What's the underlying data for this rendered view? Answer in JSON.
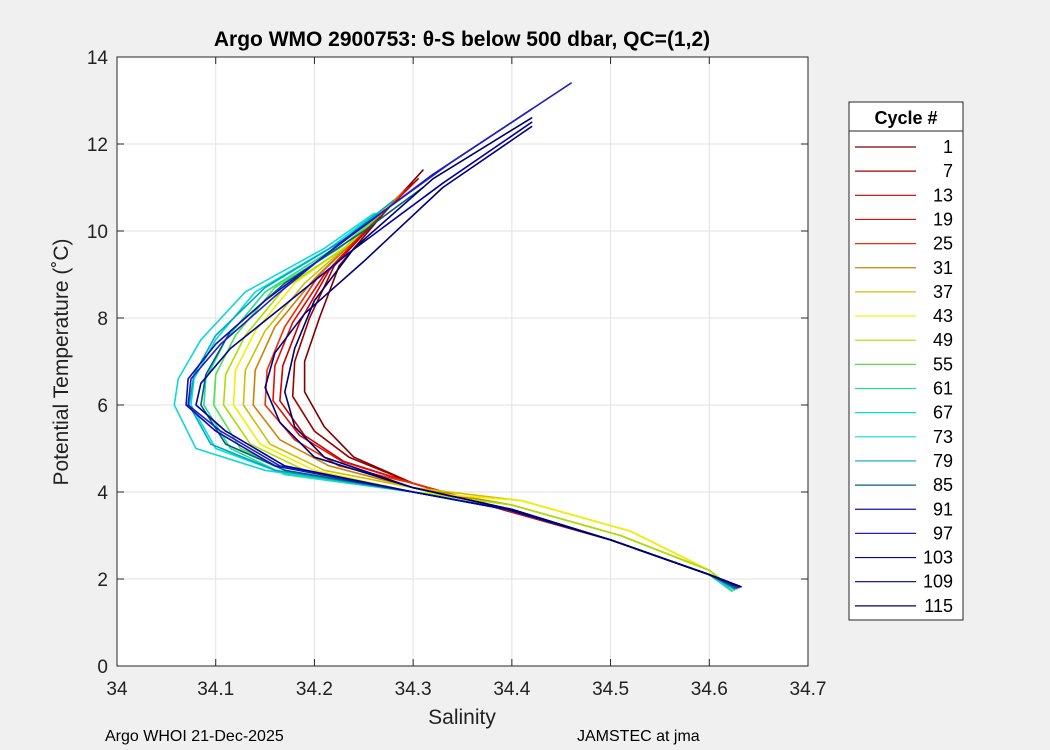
{
  "chart_data": {
    "type": "line",
    "title": "Argo WMO 2900753: θ-S below 500 dbar,  QC=(1,2)",
    "xlabel": "Salinity",
    "ylabel": "Potential Temperature (˚C)",
    "xlim": [
      34.0,
      34.7
    ],
    "ylim": [
      0,
      14
    ],
    "xticks": [
      34,
      34.1,
      34.2,
      34.3,
      34.4,
      34.5,
      34.6,
      34.7
    ],
    "xtick_labels": [
      "34",
      "34.1",
      "34.2",
      "34.3",
      "34.4",
      "34.5",
      "34.6",
      "34.7"
    ],
    "yticks": [
      0,
      2,
      4,
      6,
      8,
      10,
      12,
      14
    ],
    "ytick_labels": [
      "0",
      "2",
      "4",
      "6",
      "8",
      "10",
      "12",
      "14"
    ],
    "grid": true,
    "legend_title": "Cycle #",
    "legend_position": "right-outside",
    "series": [
      {
        "name": "1",
        "color": "#800000",
        "s": [
          34.31,
          34.27,
          34.225,
          34.205,
          34.19,
          34.19,
          34.21,
          34.24,
          34.3,
          34.39,
          34.5,
          34.6,
          34.625
        ],
        "t": [
          11.4,
          10.4,
          9.2,
          8.0,
          7.0,
          6.3,
          5.5,
          4.8,
          4.2,
          3.6,
          2.9,
          2.1,
          1.75
        ]
      },
      {
        "name": "7",
        "color": "#9c0000",
        "s": [
          34.305,
          34.265,
          34.22,
          34.195,
          34.18,
          34.178,
          34.2,
          34.235,
          34.3,
          34.39,
          34.5,
          34.6,
          34.624
        ],
        "t": [
          11.2,
          10.3,
          9.2,
          8.0,
          7.0,
          6.2,
          5.4,
          4.8,
          4.2,
          3.6,
          2.9,
          2.1,
          1.75
        ]
      },
      {
        "name": "13",
        "color": "#c80000",
        "s": [
          34.3,
          34.26,
          34.215,
          34.185,
          34.168,
          34.165,
          34.19,
          34.23,
          34.3,
          34.39,
          34.5,
          34.6,
          34.623
        ],
        "t": [
          11.1,
          10.2,
          9.1,
          7.9,
          6.9,
          6.1,
          5.3,
          4.7,
          4.2,
          3.6,
          2.9,
          2.1,
          1.74
        ]
      },
      {
        "name": "19",
        "color": "#e01000",
        "s": [
          34.295,
          34.255,
          34.21,
          34.178,
          34.16,
          34.158,
          34.185,
          34.228,
          34.3,
          34.392,
          34.5,
          34.6,
          34.622
        ],
        "t": [
          11.0,
          10.1,
          9.0,
          7.9,
          6.9,
          6.1,
          5.3,
          4.7,
          4.2,
          3.6,
          2.9,
          2.1,
          1.74
        ]
      },
      {
        "name": "25",
        "color": "#f03000",
        "s": [
          34.29,
          34.25,
          34.205,
          34.17,
          34.152,
          34.15,
          34.18,
          34.225,
          34.3,
          34.395,
          34.5,
          34.6,
          34.622
        ],
        "t": [
          10.9,
          10.0,
          9.0,
          7.8,
          6.8,
          6.0,
          5.2,
          4.6,
          4.2,
          3.6,
          2.9,
          2.1,
          1.74
        ]
      },
      {
        "name": "31",
        "color": "#d08000",
        "s": [
          34.285,
          34.245,
          34.2,
          34.16,
          34.14,
          34.138,
          34.165,
          34.215,
          34.3,
          34.4,
          34.51,
          34.6,
          34.623
        ],
        "t": [
          10.8,
          9.9,
          8.9,
          7.8,
          6.8,
          6.0,
          5.2,
          4.6,
          4.1,
          3.7,
          3.0,
          2.2,
          1.75
        ]
      },
      {
        "name": "37",
        "color": "#d0c000",
        "s": [
          34.28,
          34.24,
          34.19,
          34.15,
          34.13,
          34.128,
          34.155,
          34.21,
          34.3,
          34.41,
          34.52,
          34.6,
          34.624
        ],
        "t": [
          10.7,
          9.8,
          8.8,
          7.7,
          6.8,
          6.0,
          5.1,
          4.5,
          4.1,
          3.8,
          3.1,
          2.2,
          1.75
        ]
      },
      {
        "name": "43",
        "color": "#f0f000",
        "s": [
          34.275,
          34.235,
          34.18,
          34.14,
          34.12,
          34.118,
          34.145,
          34.2,
          34.3,
          34.41,
          34.52,
          34.6,
          34.624
        ],
        "t": [
          10.6,
          9.7,
          8.8,
          7.7,
          6.8,
          6.0,
          5.1,
          4.5,
          4.0,
          3.8,
          3.1,
          2.2,
          1.75
        ]
      },
      {
        "name": "49",
        "color": "#a8e000",
        "s": [
          34.27,
          34.23,
          34.17,
          34.13,
          34.11,
          34.108,
          34.135,
          34.19,
          34.3,
          34.4,
          34.51,
          34.6,
          34.625
        ],
        "t": [
          10.5,
          9.6,
          8.7,
          7.6,
          6.7,
          6.0,
          5.1,
          4.5,
          4.0,
          3.7,
          3.0,
          2.2,
          1.76
        ]
      },
      {
        "name": "55",
        "color": "#50e050",
        "s": [
          34.268,
          34.225,
          34.16,
          34.12,
          34.1,
          34.098,
          34.125,
          34.18,
          34.3,
          34.4,
          34.5,
          34.6,
          34.625
        ],
        "t": [
          10.4,
          9.6,
          8.7,
          7.6,
          6.7,
          6.0,
          5.0,
          4.4,
          4.0,
          3.6,
          2.9,
          2.1,
          1.76
        ]
      },
      {
        "name": "61",
        "color": "#20e090",
        "s": [
          34.265,
          34.22,
          34.15,
          34.11,
          34.09,
          34.088,
          34.115,
          34.17,
          34.3,
          34.395,
          34.5,
          34.6,
          34.625
        ],
        "t": [
          10.4,
          9.6,
          8.6,
          7.5,
          6.6,
          6.0,
          5.0,
          4.4,
          4.0,
          3.6,
          2.9,
          2.1,
          1.76
        ]
      },
      {
        "name": "67",
        "color": "#00e0d0",
        "s": [
          34.262,
          34.215,
          34.14,
          34.1,
          34.078,
          34.075,
          34.1,
          34.16,
          34.3,
          34.395,
          34.5,
          34.6,
          34.625
        ],
        "t": [
          10.4,
          9.6,
          8.6,
          7.5,
          6.6,
          6.0,
          5.0,
          4.5,
          4.0,
          3.6,
          2.9,
          2.1,
          1.76
        ]
      },
      {
        "name": "73",
        "color": "#10d8d8",
        "s": [
          34.26,
          34.21,
          34.13,
          34.085,
          34.062,
          34.058,
          34.08,
          34.15,
          34.3,
          34.395,
          34.5,
          34.6,
          34.623
        ],
        "t": [
          10.4,
          9.6,
          8.6,
          7.5,
          6.6,
          6.0,
          5.0,
          4.5,
          4.0,
          3.6,
          2.9,
          2.1,
          1.72
        ]
      },
      {
        "name": "79",
        "color": "#00a8c8",
        "s": [
          34.28,
          34.23,
          34.15,
          34.1,
          34.078,
          34.073,
          34.095,
          34.16,
          34.3,
          34.395,
          34.5,
          34.6,
          34.626
        ],
        "t": [
          10.7,
          9.8,
          8.7,
          7.6,
          6.7,
          6.0,
          5.1,
          4.5,
          4.0,
          3.6,
          2.9,
          2.1,
          1.77
        ]
      },
      {
        "name": "85",
        "color": "#006080",
        "s": [
          34.31,
          34.25,
          34.17,
          34.115,
          34.09,
          34.085,
          34.11,
          34.17,
          34.3,
          34.395,
          34.5,
          34.6,
          34.628
        ],
        "t": [
          11.0,
          10.0,
          8.8,
          7.7,
          6.7,
          6.0,
          5.1,
          4.5,
          4.0,
          3.6,
          2.9,
          2.1,
          1.78
        ]
      },
      {
        "name": "91",
        "color": "#1010b0",
        "s": [
          34.42,
          34.32,
          34.22,
          34.15,
          34.1,
          34.072,
          34.07,
          34.1,
          34.16,
          34.3,
          34.395,
          34.5,
          34.6,
          34.63
        ],
        "t": [
          12.8,
          11.3,
          9.6,
          8.4,
          7.4,
          6.6,
          6.0,
          5.4,
          4.6,
          4.0,
          3.6,
          2.9,
          2.1,
          1.8
        ]
      },
      {
        "name": "97",
        "color": "#2020c0",
        "s": [
          34.46,
          34.34,
          34.23,
          34.16,
          34.105,
          34.075,
          34.072,
          34.105,
          34.165,
          34.3,
          34.395,
          34.5,
          34.6,
          34.63
        ],
        "t": [
          13.4,
          11.6,
          9.8,
          8.5,
          7.4,
          6.6,
          6.0,
          5.4,
          4.6,
          4.0,
          3.6,
          2.9,
          2.1,
          1.81
        ]
      },
      {
        "name": "103",
        "color": "#0000a0",
        "s": [
          34.42,
          34.33,
          34.235,
          34.17,
          34.115,
          34.085,
          34.08,
          34.11,
          34.17,
          34.3,
          34.395,
          34.5,
          34.6,
          34.632
        ],
        "t": [
          12.5,
          11.1,
          9.5,
          8.3,
          7.3,
          6.5,
          6.0,
          5.4,
          4.6,
          4.0,
          3.6,
          2.9,
          2.1,
          1.82
        ]
      },
      {
        "name": "109",
        "color": "#000080",
        "s": [
          34.42,
          34.33,
          34.25,
          34.19,
          34.16,
          34.15,
          34.165,
          34.2,
          34.3,
          34.4,
          34.5,
          34.6,
          34.632
        ],
        "t": [
          12.4,
          11.0,
          9.3,
          8.1,
          7.2,
          6.4,
          5.6,
          4.8,
          4.1,
          3.6,
          2.9,
          2.1,
          1.82
        ]
      },
      {
        "name": "115",
        "color": "#00006a",
        "s": [
          34.42,
          34.32,
          34.24,
          34.2,
          34.18,
          34.17,
          34.18,
          34.21,
          34.3,
          34.4,
          34.5,
          34.6,
          34.632
        ],
        "t": [
          12.6,
          11.2,
          9.6,
          8.4,
          7.3,
          6.3,
          5.5,
          4.8,
          4.1,
          3.6,
          2.9,
          2.1,
          1.82
        ]
      }
    ]
  },
  "footer": {
    "left": "Argo WHOI 21-Dec-2025",
    "right": "JAMSTEC at jma"
  }
}
